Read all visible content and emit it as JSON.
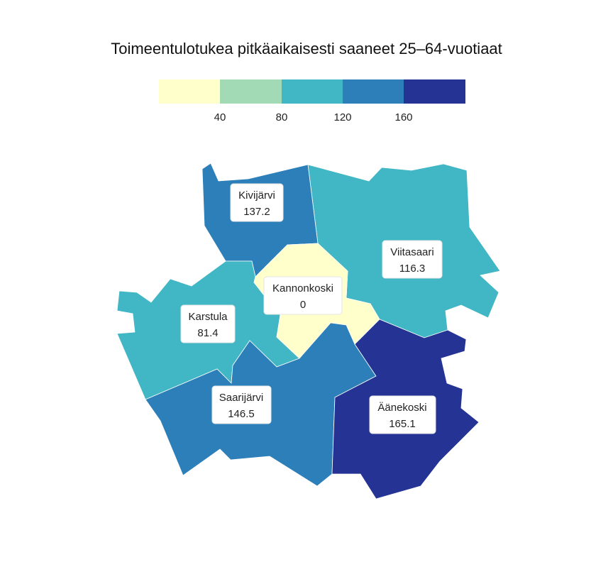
{
  "title": "Toimeentulotukea pitkäaikaisesti saaneet 25–64-vuotiaat",
  "legend": {
    "colors": [
      "#ffffcc",
      "#a1dab4",
      "#41b6c4",
      "#2c7fb8",
      "#253494"
    ],
    "ticks": [
      "40",
      "80",
      "120",
      "160"
    ]
  },
  "regions": [
    {
      "id": "kivijarvi",
      "name": "Kivijärvi",
      "value": "137.2",
      "color": "#2c7fb8"
    },
    {
      "id": "viitasaari",
      "name": "Viitasaari",
      "value": "116.3",
      "color": "#41b6c4"
    },
    {
      "id": "kannonkoski",
      "name": "Kannonkoski",
      "value": "0",
      "color": "#ffffcc"
    },
    {
      "id": "karstula",
      "name": "Karstula",
      "value": "81.4",
      "color": "#41b6c4"
    },
    {
      "id": "saarijarvi",
      "name": "Saarijärvi",
      "value": "146.5",
      "color": "#2c7fb8"
    },
    {
      "id": "aanekoski",
      "name": "Äänekoski",
      "value": "165.1",
      "color": "#253494"
    }
  ]
}
